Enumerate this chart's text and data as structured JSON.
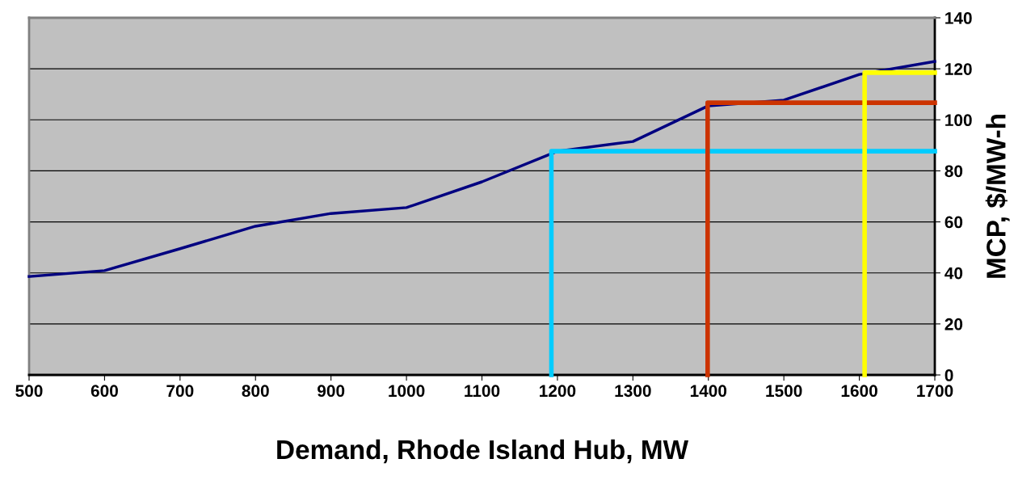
{
  "chart_data": {
    "type": "line",
    "xlabel": "Demand, Rhode Island Hub, MW",
    "ylabel": "MCP, $/MW-h",
    "x": [
      500,
      600,
      700,
      800,
      900,
      1000,
      1100,
      1200,
      1300,
      1400,
      1500,
      1600,
      1700
    ],
    "series": [
      {
        "color": "#000080",
        "values": [
          38.6,
          40.9,
          49.5,
          58.3,
          63.3,
          65.6,
          75.7,
          87.7,
          91.5,
          105.5,
          107.7,
          117.8,
          122.9
        ]
      },
      {
        "color": "#00ccff",
        "x": [
          1192,
          1192,
          1700
        ],
        "values": [
          0,
          87.7,
          87.7
        ]
      },
      {
        "color": "#cc3300",
        "x": [
          1399,
          1399,
          1700
        ],
        "values": [
          0,
          106.7,
          106.7
        ]
      },
      {
        "color": "#ffff00",
        "x": [
          1607,
          1607,
          1700
        ],
        "values": [
          0,
          118.5,
          118.5
        ]
      }
    ],
    "xlim": [
      500,
      1700
    ],
    "xticks": [
      500,
      600,
      700,
      800,
      900,
      1000,
      1100,
      1200,
      1300,
      1400,
      1500,
      1600,
      1700
    ],
    "ylim": [
      0,
      140
    ],
    "yticks": [
      0,
      20,
      40,
      60,
      80,
      100,
      120,
      140
    ],
    "grid": "y",
    "marker": "none",
    "line_style": "solid",
    "legend": false
  }
}
